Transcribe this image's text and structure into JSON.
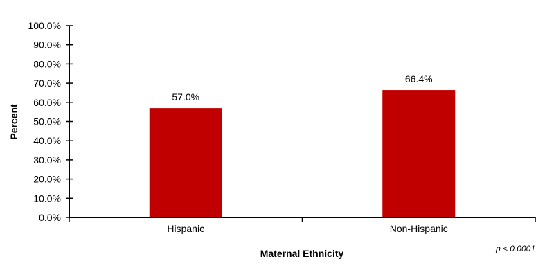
{
  "chart_data": {
    "type": "bar",
    "categories": [
      "Hispanic",
      "Non-Hispanic"
    ],
    "values": [
      57.0,
      66.4
    ],
    "data_labels": [
      "57.0%",
      "66.4%"
    ],
    "title": "",
    "xlabel": "Maternal Ethnicity",
    "ylabel": "Percent",
    "ylim": [
      0,
      100
    ],
    "yticks": [
      "0.0%",
      "10.0%",
      "20.0%",
      "30.0%",
      "40.0%",
      "50.0%",
      "60.0%",
      "70.0%",
      "80.0%",
      "90.0%",
      "100.0%"
    ],
    "grid": false,
    "bar_color": "#C00000",
    "annotation": "p < 0.0001"
  }
}
